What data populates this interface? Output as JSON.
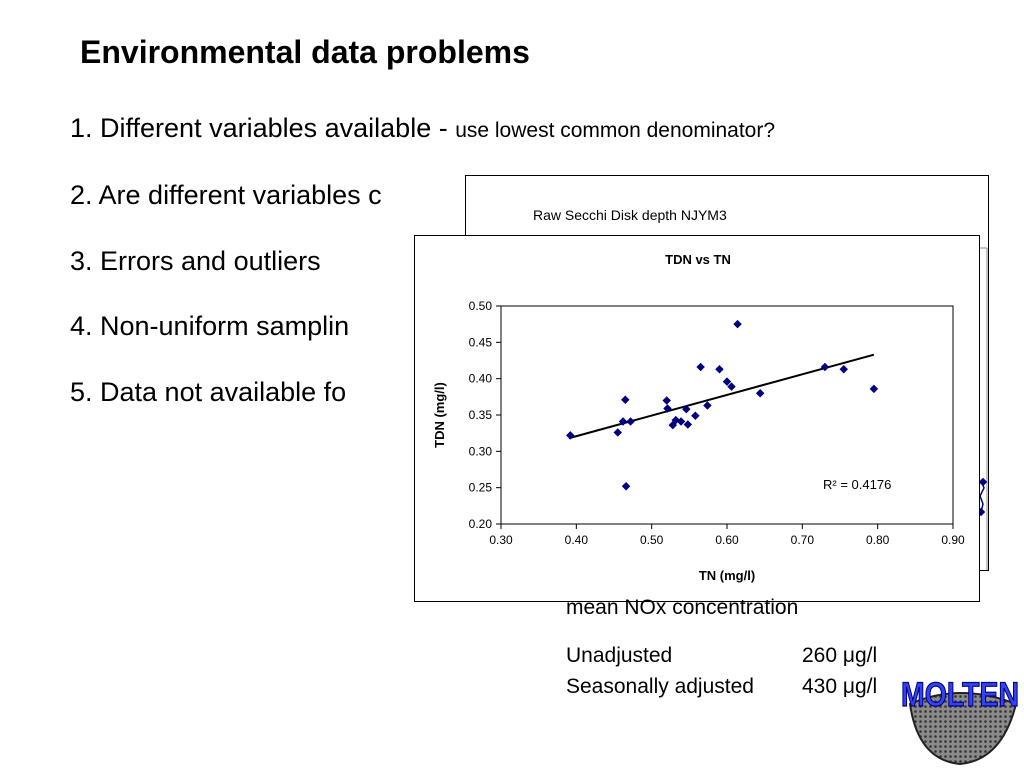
{
  "slide": {
    "title": "Environmental data problems",
    "bullets": [
      {
        "main": "1. Different variables available - ",
        "sub": "use lowest common denominator?"
      },
      {
        "main": "2. Are different variables c",
        "sub": ""
      },
      {
        "main": "3. Errors and outliers",
        "sub": ""
      },
      {
        "main": "4. Non-uniform samplin",
        "sub": ""
      },
      {
        "main": "5. Data not available fo",
        "sub": ""
      }
    ]
  },
  "secchi_chart": {
    "title": "Raw Secchi Disk depth NJYM3"
  },
  "nox": {
    "title": "mean NOx concentration",
    "rows": [
      {
        "label": "Unadjusted",
        "value": "260 μg/l"
      },
      {
        "label": "Seasonally adjusted",
        "value": "430 μg/l"
      }
    ]
  },
  "logo": {
    "text": "MOLTEN"
  },
  "chart_data": {
    "type": "scatter",
    "title": "TDN vs TN",
    "xlabel": "TN (mg/l)",
    "ylabel": "TDN (mg/l)",
    "xlim": [
      0.3,
      0.9
    ],
    "ylim": [
      0.2,
      0.5
    ],
    "xticks": [
      "0.30",
      "0.40",
      "0.50",
      "0.60",
      "0.70",
      "0.80",
      "0.90"
    ],
    "yticks": [
      "0.20",
      "0.25",
      "0.30",
      "0.35",
      "0.40",
      "0.45",
      "0.50"
    ],
    "grid": false,
    "marker_color": "#000080",
    "points": [
      {
        "x": 0.392,
        "y": 0.322
      },
      {
        "x": 0.455,
        "y": 0.326
      },
      {
        "x": 0.462,
        "y": 0.341
      },
      {
        "x": 0.465,
        "y": 0.371
      },
      {
        "x": 0.466,
        "y": 0.252
      },
      {
        "x": 0.472,
        "y": 0.341
      },
      {
        "x": 0.52,
        "y": 0.37
      },
      {
        "x": 0.521,
        "y": 0.359
      },
      {
        "x": 0.528,
        "y": 0.336
      },
      {
        "x": 0.532,
        "y": 0.343
      },
      {
        "x": 0.539,
        "y": 0.341
      },
      {
        "x": 0.546,
        "y": 0.358
      },
      {
        "x": 0.548,
        "y": 0.337
      },
      {
        "x": 0.558,
        "y": 0.349
      },
      {
        "x": 0.565,
        "y": 0.416
      },
      {
        "x": 0.574,
        "y": 0.363
      },
      {
        "x": 0.59,
        "y": 0.413
      },
      {
        "x": 0.6,
        "y": 0.396
      },
      {
        "x": 0.606,
        "y": 0.389
      },
      {
        "x": 0.614,
        "y": 0.475
      },
      {
        "x": 0.644,
        "y": 0.38
      },
      {
        "x": 0.73,
        "y": 0.416
      },
      {
        "x": 0.755,
        "y": 0.413
      },
      {
        "x": 0.795,
        "y": 0.386
      }
    ],
    "trendline": {
      "x": [
        0.39,
        0.795
      ],
      "y": [
        0.318,
        0.433
      ]
    },
    "annotation": "R² = 0.4176"
  }
}
